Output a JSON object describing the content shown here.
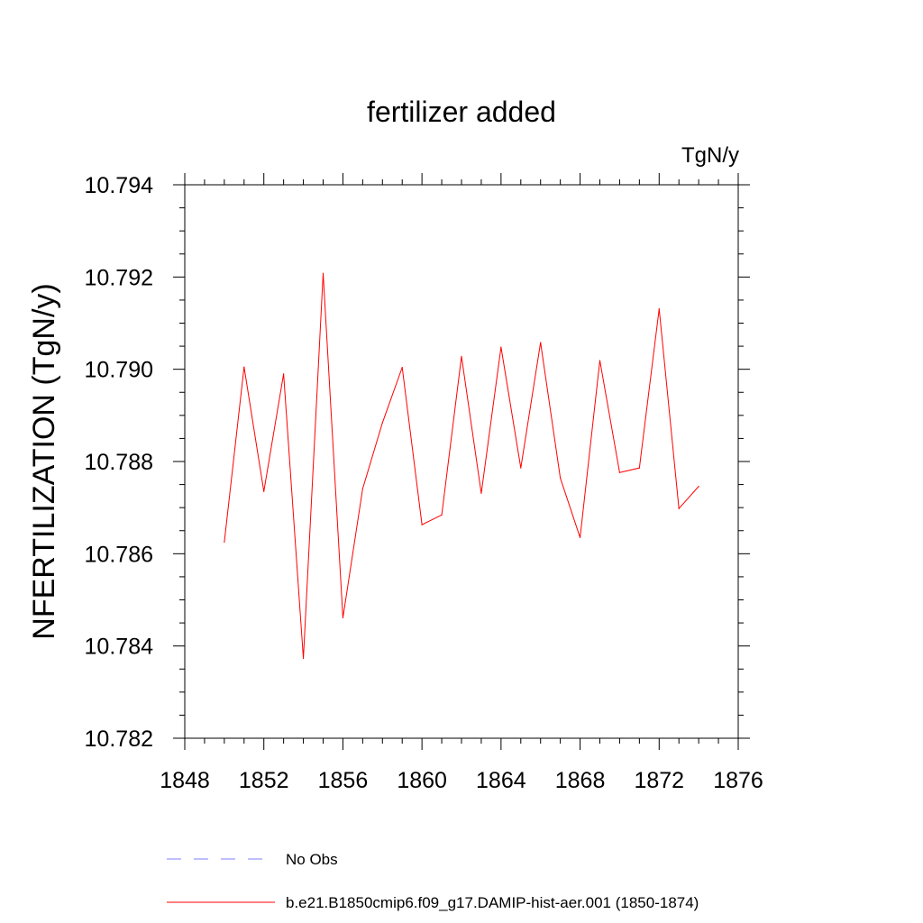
{
  "chart_data": {
    "type": "line",
    "title": "fertilizer added",
    "units": "TgN/y",
    "ylabel": "NFERTILIZATION  (TgN/y)",
    "xlabel": "",
    "xlim": [
      1848,
      1876
    ],
    "ylim": [
      10.782,
      10.794
    ],
    "x_ticks": [
      "1848",
      "1852",
      "1856",
      "1860",
      "1864",
      "1868",
      "1872",
      "1876"
    ],
    "y_ticks": [
      "10.782",
      "10.784",
      "10.786",
      "10.788",
      "10.790",
      "10.792",
      "10.794"
    ],
    "grid": false,
    "legend_position": "bottom",
    "series": [
      {
        "name": "b.e21.B1850cmip6.f09_g17.DAMIP-hist-aer.001 (1850-1874)",
        "color": "#ff0000",
        "style": "solid",
        "x": [
          1850,
          1851,
          1852,
          1853,
          1854,
          1855,
          1856,
          1857,
          1858,
          1859,
          1860,
          1861,
          1862,
          1863,
          1864,
          1865,
          1866,
          1867,
          1868,
          1869,
          1870,
          1871,
          1872,
          1873,
          1874
        ],
        "y": [
          10.78625,
          10.79005,
          10.78735,
          10.7899,
          10.78373,
          10.79208,
          10.78461,
          10.78741,
          10.78884,
          10.79004,
          10.78663,
          10.78684,
          10.79028,
          10.78731,
          10.79048,
          10.78786,
          10.79058,
          10.78764,
          10.78635,
          10.79019,
          10.78776,
          10.78786,
          10.79131,
          10.78698,
          10.78746
        ]
      }
    ],
    "legend": [
      {
        "label": "No Obs",
        "color": "#7f7fff",
        "style": "dashed"
      },
      {
        "label": "b.e21.B1850cmip6.f09_g17.DAMIP-hist-aer.001 (1850-1874)",
        "color": "#ff0000",
        "style": "solid"
      }
    ]
  }
}
